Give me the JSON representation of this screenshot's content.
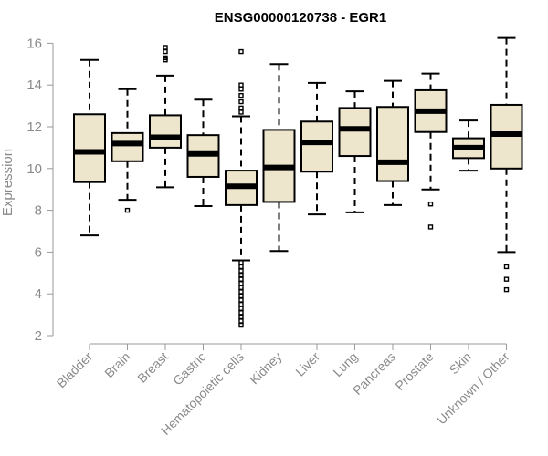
{
  "chart_data": {
    "type": "boxplot",
    "title": "ENSG00000120738 - EGR1",
    "xlabel": "",
    "ylabel": "Expression",
    "ylim": [
      2,
      16.4
    ],
    "yticks": [
      2,
      4,
      6,
      8,
      10,
      12,
      14,
      16
    ],
    "grid": false,
    "categories": [
      "Bladder",
      "Brain",
      "Breast",
      "Gastric",
      "Hematopoietic cells",
      "Kidney",
      "Liver",
      "Lung",
      "Pancreas",
      "Prostate",
      "Skin",
      "Unknown / Other"
    ],
    "boxes": [
      {
        "whisker_low": 6.8,
        "q1": 9.35,
        "median": 10.8,
        "q3": 12.6,
        "whisker_high": 15.2,
        "outliers": []
      },
      {
        "whisker_low": 8.5,
        "q1": 10.35,
        "median": 11.2,
        "q3": 11.7,
        "whisker_high": 13.8,
        "outliers": [
          8.0
        ]
      },
      {
        "whisker_low": 9.1,
        "q1": 11.0,
        "median": 11.5,
        "q3": 12.55,
        "whisker_high": 14.45,
        "outliers": [
          15.2,
          15.3,
          15.6,
          15.8
        ]
      },
      {
        "whisker_low": 8.2,
        "q1": 9.6,
        "median": 10.7,
        "q3": 11.6,
        "whisker_high": 13.3,
        "outliers": []
      },
      {
        "whisker_low": 5.6,
        "q1": 8.25,
        "median": 9.15,
        "q3": 9.9,
        "whisker_high": 12.5,
        "outliers": [
          2.5,
          2.7,
          2.9,
          3.1,
          3.3,
          3.5,
          3.7,
          3.9,
          4.1,
          4.3,
          4.5,
          4.7,
          4.9,
          5.1,
          5.3,
          5.5,
          12.7,
          12.9,
          13.2,
          13.5,
          13.8,
          14.0,
          15.6
        ]
      },
      {
        "whisker_low": 6.05,
        "q1": 8.4,
        "median": 10.05,
        "q3": 11.85,
        "whisker_high": 15.0,
        "outliers": []
      },
      {
        "whisker_low": 7.8,
        "q1": 9.85,
        "median": 11.25,
        "q3": 12.25,
        "whisker_high": 14.1,
        "outliers": []
      },
      {
        "whisker_low": 7.9,
        "q1": 10.6,
        "median": 11.9,
        "q3": 12.9,
        "whisker_high": 13.7,
        "outliers": []
      },
      {
        "whisker_low": 8.25,
        "q1": 9.4,
        "median": 10.3,
        "q3": 12.95,
        "whisker_high": 14.2,
        "outliers": []
      },
      {
        "whisker_low": 9.0,
        "q1": 11.75,
        "median": 12.75,
        "q3": 13.75,
        "whisker_high": 14.55,
        "outliers": [
          7.2,
          8.3
        ]
      },
      {
        "whisker_low": 9.9,
        "q1": 10.5,
        "median": 11.0,
        "q3": 11.45,
        "whisker_high": 12.3,
        "outliers": []
      },
      {
        "whisker_low": 6.0,
        "q1": 10.0,
        "median": 11.65,
        "q3": 13.05,
        "whisker_high": 16.25,
        "outliers": [
          4.2,
          4.7,
          5.3
        ]
      }
    ]
  }
}
